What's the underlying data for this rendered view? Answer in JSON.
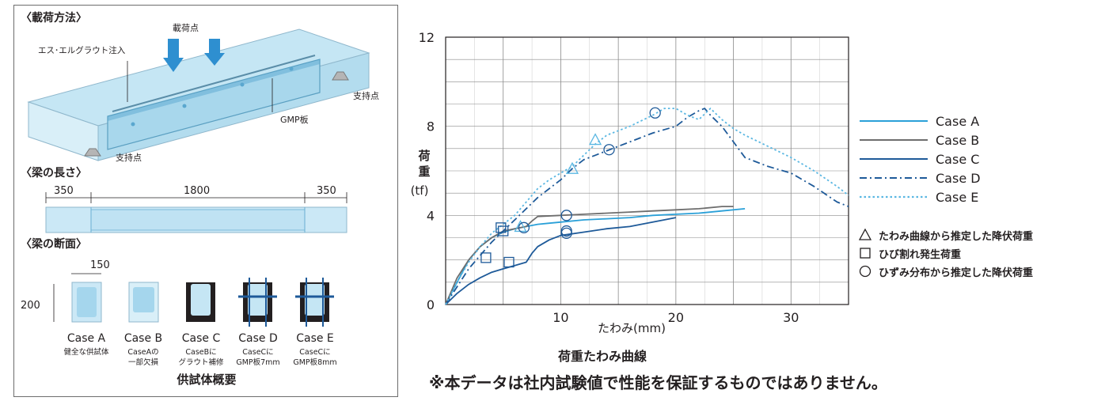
{
  "left": {
    "section_loading": "〈載荷方法〉",
    "label_loading_points": "載荷点",
    "label_grout": "エス･エルグラウト注入",
    "label_support_right": "支持点",
    "label_support_left": "支持点",
    "label_gmp_plate": "GMP板",
    "section_length": "〈梁の長さ〉",
    "dim_left": "350",
    "dim_center": "1800",
    "dim_right": "350",
    "section_cross": "〈梁の断面〉",
    "dim_width": "150",
    "dim_height": "200",
    "cases": [
      {
        "name": "Case A",
        "line1": "健全な供試体",
        "line2": ""
      },
      {
        "name": "Case B",
        "line1": "CaseAの",
        "line2": "一部欠損"
      },
      {
        "name": "Case C",
        "line1": "CaseBに",
        "line2": "グラウト補修"
      },
      {
        "name": "Case D",
        "line1": "CaseCに",
        "line2": "GMP板7mm"
      },
      {
        "name": "Case E",
        "line1": "CaseCに",
        "line2": "GMP板8mm"
      }
    ],
    "caption": "供試体概要"
  },
  "chart_caption": "荷重たわみ曲線",
  "disclaimer": "※本データは社内試験値で性能を保証するものではありません。",
  "legend_markers": [
    {
      "symbol": "triangle",
      "label": "たわみ曲線から推定した降伏荷重"
    },
    {
      "symbol": "square",
      "label": "ひび割れ発生荷重"
    },
    {
      "symbol": "circle",
      "label": "ひずみ分布から推定した降伏荷重"
    }
  ],
  "chart_data": {
    "type": "line",
    "xlabel": "たわみ(mm)",
    "ylabel_chars": [
      "荷",
      "重"
    ],
    "ylabel_unit": "(tf)",
    "xlim": [
      0,
      35
    ],
    "ylim": [
      0,
      12
    ],
    "x_ticks": [
      10,
      20,
      30
    ],
    "y_ticks": [
      0,
      4,
      8,
      12
    ],
    "grid": true,
    "legend_position": "right",
    "series": [
      {
        "name": "Case A",
        "style": "solid",
        "color": "#2aa0d8",
        "points": [
          [
            0,
            0
          ],
          [
            1,
            1
          ],
          [
            2,
            2
          ],
          [
            3,
            2.6
          ],
          [
            4,
            3
          ],
          [
            5,
            3.25
          ],
          [
            6,
            3.4
          ],
          [
            7,
            3.5
          ],
          [
            8,
            3.6
          ],
          [
            9,
            3.65
          ],
          [
            10,
            3.7
          ],
          [
            12,
            3.8
          ],
          [
            14,
            3.85
          ],
          [
            16,
            3.9
          ],
          [
            18,
            4.0
          ],
          [
            20,
            4.05
          ],
          [
            22,
            4.1
          ],
          [
            24,
            4.2
          ],
          [
            26,
            4.3
          ]
        ]
      },
      {
        "name": "Case B",
        "style": "solid",
        "color": "#6e6e6e",
        "points": [
          [
            0,
            0
          ],
          [
            1,
            1.2
          ],
          [
            2,
            2
          ],
          [
            3,
            2.6
          ],
          [
            4,
            3
          ],
          [
            5,
            3.3
          ],
          [
            6,
            3.4
          ],
          [
            7,
            3.5
          ],
          [
            7.5,
            3.75
          ],
          [
            8,
            3.95
          ],
          [
            10,
            4.0
          ],
          [
            12,
            4.05
          ],
          [
            14,
            4.1
          ],
          [
            16,
            4.15
          ],
          [
            18,
            4.2
          ],
          [
            20,
            4.25
          ],
          [
            22,
            4.3
          ],
          [
            24,
            4.4
          ],
          [
            25,
            4.4
          ]
        ]
      },
      {
        "name": "Case C",
        "style": "solid",
        "color": "#1e5a99",
        "points": [
          [
            0,
            0
          ],
          [
            1,
            0.5
          ],
          [
            2,
            0.9
          ],
          [
            3,
            1.2
          ],
          [
            4,
            1.45
          ],
          [
            5,
            1.6
          ],
          [
            6,
            1.75
          ],
          [
            7,
            1.9
          ],
          [
            7.5,
            2.3
          ],
          [
            8,
            2.6
          ],
          [
            9,
            2.9
          ],
          [
            10,
            3.1
          ],
          [
            12,
            3.25
          ],
          [
            14,
            3.4
          ],
          [
            16,
            3.5
          ],
          [
            18,
            3.7
          ],
          [
            20,
            3.9
          ]
        ]
      },
      {
        "name": "Case D",
        "style": "dashdot",
        "color": "#1e5a99",
        "points": [
          [
            0,
            0
          ],
          [
            1,
            0.8
          ],
          [
            2,
            1.6
          ],
          [
            3,
            2.2
          ],
          [
            4,
            2.8
          ],
          [
            5,
            3.3
          ],
          [
            6,
            3.8
          ],
          [
            7,
            4.3
          ],
          [
            8,
            4.8
          ],
          [
            9,
            5.2
          ],
          [
            10,
            5.6
          ],
          [
            11,
            6.1
          ],
          [
            12,
            6.5
          ],
          [
            13,
            6.7
          ],
          [
            14,
            6.9
          ],
          [
            16,
            7.3
          ],
          [
            18,
            7.7
          ],
          [
            20,
            8.0
          ],
          [
            21,
            8.4
          ],
          [
            22,
            8.7
          ],
          [
            22.5,
            8.8
          ],
          [
            23,
            8.5
          ],
          [
            24,
            8.0
          ],
          [
            25,
            7.3
          ],
          [
            26,
            6.6
          ],
          [
            28,
            6.2
          ],
          [
            30,
            5.9
          ],
          [
            32,
            5.3
          ],
          [
            34,
            4.6
          ],
          [
            35,
            4.4
          ]
        ]
      },
      {
        "name": "Case E",
        "style": "dotted",
        "color": "#5ab7e2",
        "points": [
          [
            0,
            0
          ],
          [
            1,
            1
          ],
          [
            2,
            1.9
          ],
          [
            3,
            2.6
          ],
          [
            4,
            3.2
          ],
          [
            5,
            3.6
          ],
          [
            6,
            4.0
          ],
          [
            7,
            4.6
          ],
          [
            8,
            5.2
          ],
          [
            9,
            5.6
          ],
          [
            10,
            5.9
          ],
          [
            11,
            6.2
          ],
          [
            12,
            6.7
          ],
          [
            13,
            7.2
          ],
          [
            14,
            7.6
          ],
          [
            16,
            8.0
          ],
          [
            18,
            8.5
          ],
          [
            19,
            8.8
          ],
          [
            20,
            8.8
          ],
          [
            21,
            8.5
          ],
          [
            22,
            8.3
          ],
          [
            23,
            8.8
          ],
          [
            24,
            8.3
          ],
          [
            25,
            7.9
          ],
          [
            26,
            7.6
          ],
          [
            28,
            7.1
          ],
          [
            30,
            6.6
          ],
          [
            32,
            6.0
          ],
          [
            34,
            5.3
          ],
          [
            35,
            4.9
          ]
        ]
      }
    ],
    "markers": [
      {
        "symbol": "square",
        "x": 4.8,
        "y": 3.45
      },
      {
        "symbol": "square",
        "x": 5.0,
        "y": 3.3
      },
      {
        "symbol": "square",
        "x": 3.5,
        "y": 2.1
      },
      {
        "symbol": "square",
        "x": 5.5,
        "y": 1.9
      },
      {
        "symbol": "triangle",
        "x": 6.5,
        "y": 3.5
      },
      {
        "symbol": "triangle",
        "x": 11.0,
        "y": 6.1
      },
      {
        "symbol": "triangle",
        "x": 13.0,
        "y": 7.4
      },
      {
        "symbol": "circle",
        "x": 6.8,
        "y": 3.45
      },
      {
        "symbol": "circle",
        "x": 10.5,
        "y": 4.0
      },
      {
        "symbol": "circle",
        "x": 10.5,
        "y": 3.3
      },
      {
        "symbol": "circle",
        "x": 10.5,
        "y": 3.2
      },
      {
        "symbol": "circle",
        "x": 14.2,
        "y": 6.95
      },
      {
        "symbol": "circle",
        "x": 18.2,
        "y": 8.6
      }
    ]
  }
}
